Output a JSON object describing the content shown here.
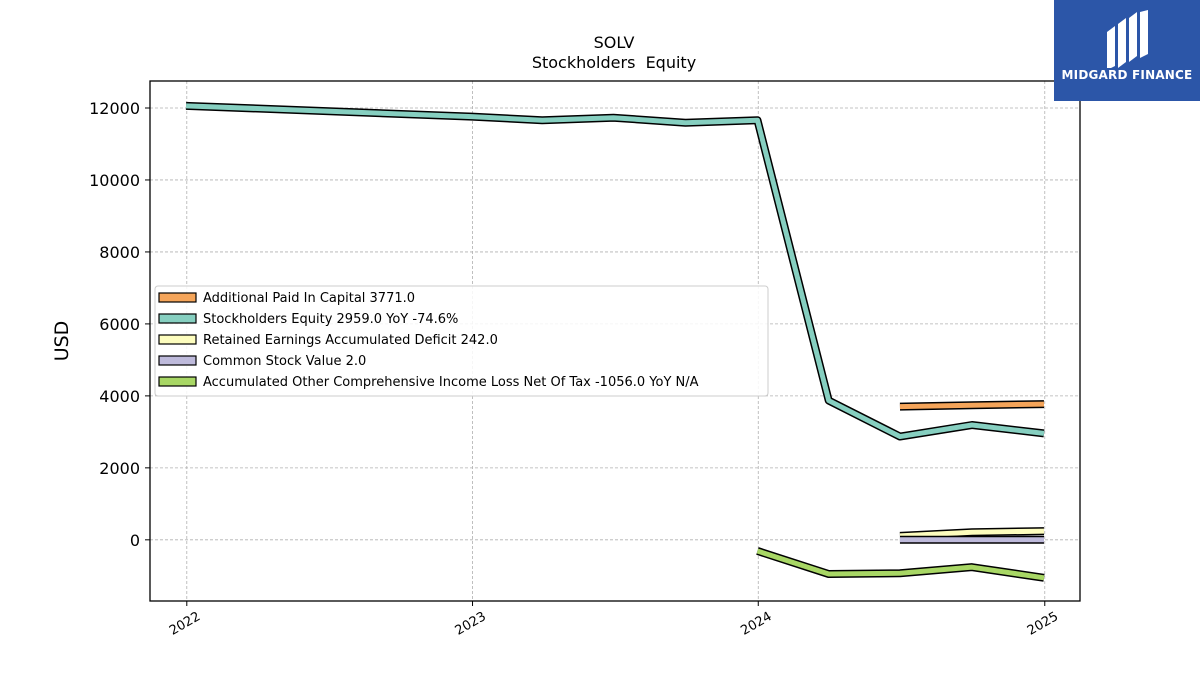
{
  "chart_data": {
    "type": "line",
    "title": "SOLV",
    "subtitle": "Stockholders  Equity",
    "xlabel": "",
    "ylabel": "USD",
    "xlim": [
      "2021-11-15",
      "2025-02-15"
    ],
    "ylim": [
      -1700,
      12750
    ],
    "x_ticks": [
      "2022",
      "2023",
      "2024",
      "2025"
    ],
    "y_ticks": [
      0,
      2000,
      4000,
      6000,
      8000,
      10000,
      12000
    ],
    "grid": true,
    "legend_position": "center-left",
    "series": [
      {
        "name": "Additional Paid In Capital",
        "legend_label": "Additional Paid In Capital  3771.0",
        "color": "#f5a55a",
        "points": [
          [
            "2024-06-30",
            3700
          ],
          [
            "2024-09-30",
            3740
          ],
          [
            "2024-12-31",
            3771
          ]
        ]
      },
      {
        "name": "Stockholders Equity",
        "legend_label": "Stockholders Equity  2959.0 YoY -74.6%",
        "color": "#86cfc0",
        "points": [
          [
            "2021-12-31",
            12060
          ],
          [
            "2022-12-31",
            11760
          ],
          [
            "2023-03-31",
            11660
          ],
          [
            "2023-06-30",
            11730
          ],
          [
            "2023-09-30",
            11590
          ],
          [
            "2023-12-31",
            11660
          ],
          [
            "2024-03-31",
            3870
          ],
          [
            "2024-06-30",
            2870
          ],
          [
            "2024-09-30",
            3190
          ],
          [
            "2024-12-31",
            2959
          ]
        ]
      },
      {
        "name": "Retained Earnings Accumulated Deficit",
        "legend_label": "Retained Earnings Accumulated Deficit  242.0",
        "color": "#fdfdbe",
        "points": [
          [
            "2024-06-30",
            110
          ],
          [
            "2024-09-30",
            210
          ],
          [
            "2024-12-31",
            242
          ]
        ]
      },
      {
        "name": "Common Stock Value",
        "legend_label": "Common Stock Value  2.0",
        "color": "#bebadb",
        "points": [
          [
            "2024-06-30",
            2
          ],
          [
            "2024-09-30",
            2
          ],
          [
            "2024-12-31",
            2
          ]
        ]
      },
      {
        "name": "Accumulated Other Comprehensive Income Loss Net Of Tax",
        "legend_label": "Accumulated Other Comprehensive Income Loss Net Of Tax  -1056.0 YoY N/A",
        "color": "#a8d765",
        "points": [
          [
            "2023-12-31",
            -310
          ],
          [
            "2024-03-31",
            -950
          ],
          [
            "2024-06-30",
            -930
          ],
          [
            "2024-09-30",
            -760
          ],
          [
            "2024-12-31",
            -1056
          ]
        ]
      }
    ]
  },
  "logo": {
    "text": "MIDGARD FINANCE",
    "color": "#2c56a8"
  }
}
